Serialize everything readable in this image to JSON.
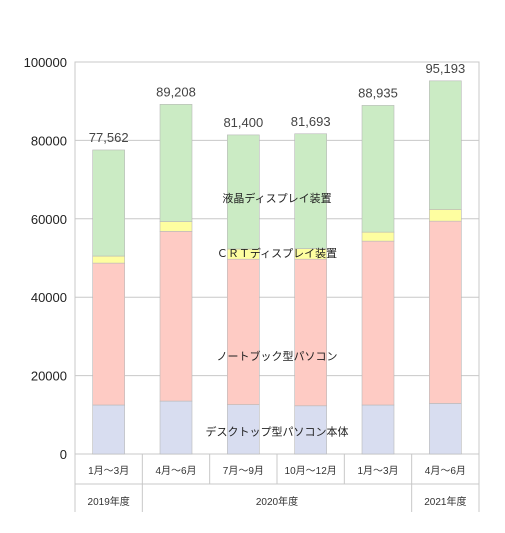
{
  "chart_data": {
    "type": "bar",
    "stacked": true,
    "categories": [
      "1月～3月",
      "4月～6月",
      "7月～9月",
      "10月～12月",
      "1月～3月",
      "4月～6月"
    ],
    "year_groups": [
      {
        "label": "2019年度",
        "span": 1
      },
      {
        "label": "2020年度",
        "span": 4
      },
      {
        "label": "2021年度",
        "span": 1
      }
    ],
    "series": [
      {
        "name": "デスクトップ型パソコン本体",
        "color": "#d8ddf0",
        "values": [
          12500,
          13500,
          12600,
          12300,
          12500,
          12900
        ]
      },
      {
        "name": "ノートブック型パソコン",
        "color": "#fecbc4",
        "values": [
          36200,
          43300,
          37100,
          37400,
          41800,
          46500
        ]
      },
      {
        "name": "ＣＲＴディスプレイ装置",
        "color": "#fefea0",
        "values": [
          1800,
          2500,
          2600,
          2700,
          2300,
          3000
        ]
      },
      {
        "name": "液晶ディスプレイ装置",
        "color": "#cbebc4",
        "values": [
          27062,
          29908,
          29100,
          29293,
          32335,
          32793
        ]
      }
    ],
    "totals": [
      "77,562",
      "89,208",
      "81,400",
      "81,693",
      "88,935",
      "95,193"
    ],
    "highlight_index": 5,
    "highlight_color": "#ff3333",
    "ylim": [
      0,
      100000
    ],
    "yticks": [
      "0",
      "20000",
      "40000",
      "60000",
      "80000",
      "100000"
    ],
    "grid": true,
    "title": "",
    "xlabel": "",
    "ylabel": ""
  }
}
